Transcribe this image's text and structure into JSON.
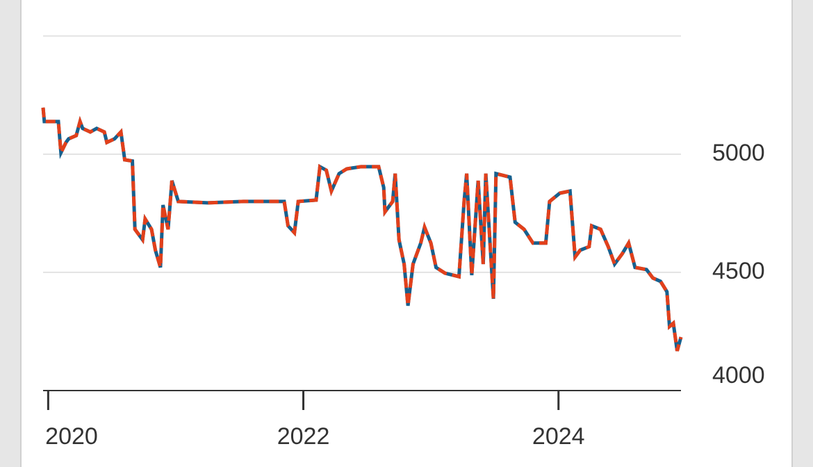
{
  "chart_data": {
    "type": "line",
    "x": [
      2019.96,
      2019.97,
      2020.08,
      2020.1,
      2020.14,
      2020.16,
      2020.22,
      2020.25,
      2020.27,
      2020.33,
      2020.38,
      2020.44,
      2020.46,
      2020.52,
      2020.57,
      2020.6,
      2020.66,
      2020.68,
      2020.74,
      2020.76,
      2020.81,
      2020.84,
      2020.88,
      2020.9,
      2020.94,
      2020.97,
      2021.02,
      2021.25,
      2021.53,
      2021.85,
      2021.88,
      2021.93,
      2021.96,
      2022.1,
      2022.13,
      2022.18,
      2022.22,
      2022.28,
      2022.34,
      2022.45,
      2022.59,
      2022.63,
      2022.64,
      2022.7,
      2022.72,
      2022.75,
      2022.79,
      2022.82,
      2022.86,
      2022.92,
      2022.95,
      2023.0,
      2023.04,
      2023.11,
      2023.22,
      2023.26,
      2023.28,
      2023.32,
      2023.37,
      2023.41,
      2023.43,
      2023.49,
      2023.51,
      2023.62,
      2023.66,
      2023.73,
      2023.8,
      2023.9,
      2023.93,
      2024.01,
      2024.09,
      2024.13,
      2024.17,
      2024.24,
      2024.26,
      2024.33,
      2024.39,
      2024.44,
      2024.5,
      2024.55,
      2024.6,
      2024.69,
      2024.74,
      2024.8,
      2024.85,
      2024.87,
      2024.9,
      2024.93,
      2024.96
    ],
    "series": [
      {
        "color": "#17608e",
        "dash": false,
        "values": [
          5197,
          5138,
          5138,
          5006,
          5050,
          5065,
          5079,
          5138,
          5109,
          5094,
          5109,
          5094,
          5050,
          5065,
          5094,
          4976,
          4971,
          4682,
          4638,
          4726,
          4682,
          4594,
          4521,
          4785,
          4682,
          4888,
          4800,
          4794,
          4800,
          4800,
          4697,
          4668,
          4800,
          4806,
          4947,
          4932,
          4844,
          4918,
          4938,
          4947,
          4947,
          4859,
          4756,
          4800,
          4918,
          4638,
          4535,
          4359,
          4535,
          4624,
          4691,
          4624,
          4521,
          4497,
          4482,
          4800,
          4918,
          4488,
          4888,
          4535,
          4918,
          4388,
          4918,
          4903,
          4712,
          4682,
          4624,
          4624,
          4800,
          4835,
          4844,
          4565,
          4594,
          4609,
          4697,
          4682,
          4609,
          4535,
          4579,
          4624,
          4521,
          4512,
          4476,
          4462,
          4418,
          4271,
          4285,
          4168,
          4226
        ]
      },
      {
        "color": "#e2401b",
        "dash": true,
        "values": [
          5197,
          5138,
          5138,
          5006,
          5050,
          5065,
          5079,
          5138,
          5109,
          5094,
          5109,
          5094,
          5050,
          5065,
          5094,
          4976,
          4971,
          4682,
          4638,
          4726,
          4682,
          4594,
          4521,
          4785,
          4682,
          4888,
          4800,
          4794,
          4800,
          4800,
          4697,
          4668,
          4800,
          4806,
          4947,
          4932,
          4844,
          4918,
          4938,
          4947,
          4947,
          4859,
          4756,
          4800,
          4918,
          4638,
          4535,
          4359,
          4535,
          4624,
          4691,
          4624,
          4521,
          4497,
          4482,
          4800,
          4918,
          4488,
          4888,
          4535,
          4918,
          4388,
          4918,
          4903,
          4712,
          4682,
          4624,
          4624,
          4800,
          4835,
          4844,
          4565,
          4594,
          4609,
          4697,
          4682,
          4609,
          4535,
          4579,
          4624,
          4521,
          4512,
          4476,
          4462,
          4418,
          4271,
          4285,
          4168,
          4226
        ]
      }
    ],
    "xlim": [
      2019.96,
      2024.96
    ],
    "xticks": [
      2020,
      2022,
      2024
    ],
    "ylim": [
      4000,
      5520
    ],
    "yticks": [
      4000,
      4500,
      5000
    ],
    "gridlines": [
      4500,
      5000,
      5500
    ],
    "grid": true
  }
}
